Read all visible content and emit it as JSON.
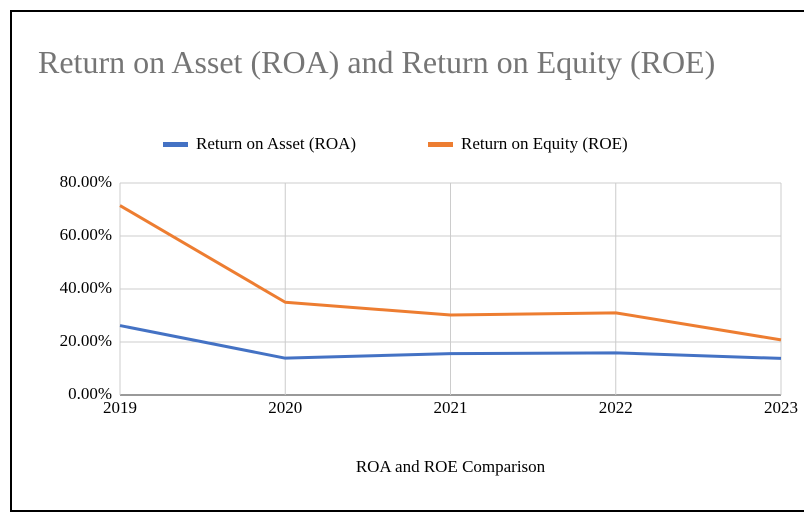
{
  "chart_data": {
    "type": "line",
    "title": "Return on Asset (ROA) and Return on Equity (ROE)",
    "x_label": "ROA and ROE Comparison",
    "x": [
      2019,
      2020,
      2021,
      2022,
      2023
    ],
    "series": [
      {
        "name": "Return on Asset (ROA)",
        "color": "#4472c4",
        "values": [
          26.2,
          13.9,
          15.6,
          15.9,
          13.8
        ]
      },
      {
        "name": "Return on Equity (ROE)",
        "color": "#ed7d31",
        "values": [
          71.5,
          35.0,
          30.2,
          31.0,
          20.8
        ]
      }
    ],
    "xlim": [
      2019,
      2023
    ],
    "xticks": [
      2019,
      2020,
      2021,
      2022,
      2023
    ],
    "ylim": [
      0,
      80
    ],
    "yticks": [
      {
        "value": 0,
        "label": "0.00%"
      },
      {
        "value": 20,
        "label": "20.00%"
      },
      {
        "value": 40,
        "label": "40.00%"
      },
      {
        "value": 60,
        "label": "60.00%"
      },
      {
        "value": 80,
        "label": "80.00%"
      }
    ],
    "grid": true,
    "legend": "top"
  }
}
